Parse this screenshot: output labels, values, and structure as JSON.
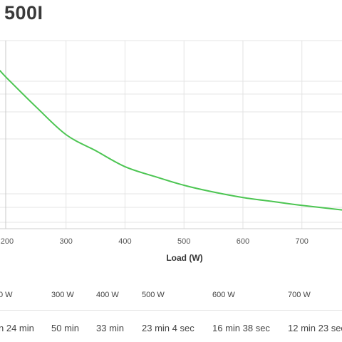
{
  "header": {
    "title": "500I"
  },
  "chart_data": {
    "type": "line",
    "xlabel": "Load (W)",
    "ylabel": "",
    "xlim": [
      188,
      768
    ],
    "x_ticks": [
      {
        "label": "200",
        "value": 200
      },
      {
        "label": "300",
        "value": 300
      },
      {
        "label": "400",
        "value": 400
      },
      {
        "label": "500",
        "value": 500
      },
      {
        "label": "600",
        "value": 600
      },
      {
        "label": "700",
        "value": 700
      }
    ],
    "grid": true,
    "series": [
      {
        "color": "#4cc552",
        "x": [
          188,
          200,
          250,
          300,
          350,
          400,
          450,
          500,
          550,
          600,
          650,
          700,
          768
        ],
        "y": [
          84,
          80,
          64.5,
          50,
          41.5,
          33,
          27.8,
          23.1,
          19.5,
          16.6,
          14.5,
          12.4,
          10.0
        ]
      }
    ]
  },
  "runtime_table": {
    "columns": [
      {
        "load": "0 W",
        "runtime": "n 24 min"
      },
      {
        "load": "300 W",
        "runtime": "50 min"
      },
      {
        "load": "400 W",
        "runtime": "33 min"
      },
      {
        "load": "500 W",
        "runtime": "23 min 4 sec"
      },
      {
        "load": "600 W",
        "runtime": "16 min 38 sec"
      },
      {
        "load": "700 W",
        "runtime": "12 min 23 sec"
      }
    ]
  }
}
